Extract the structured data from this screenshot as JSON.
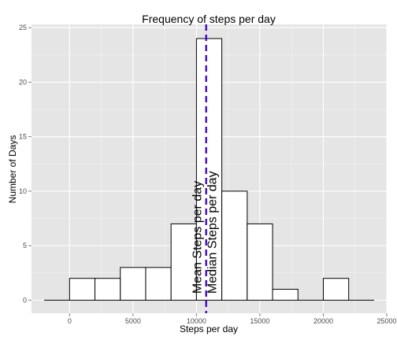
{
  "chart_data": {
    "type": "bar",
    "title": "Frequency of steps per day",
    "xlabel": "Steps per day",
    "ylabel": "Number of Days",
    "xlim": [
      -3000,
      25000
    ],
    "ylim": [
      -1.2,
      25.3
    ],
    "x_ticks": [
      0,
      5000,
      10000,
      15000,
      20000,
      25000
    ],
    "y_ticks": [
      0,
      5,
      10,
      15,
      20,
      25
    ],
    "grid": true,
    "bins": [
      {
        "x0": -2000,
        "x1": 0,
        "count": 0
      },
      {
        "x0": 0,
        "x1": 2000,
        "count": 2
      },
      {
        "x0": 2000,
        "x1": 4000,
        "count": 2
      },
      {
        "x0": 4000,
        "x1": 6000,
        "count": 3
      },
      {
        "x0": 6000,
        "x1": 8000,
        "count": 3
      },
      {
        "x0": 8000,
        "x1": 10000,
        "count": 7
      },
      {
        "x0": 10000,
        "x1": 12000,
        "count": 24
      },
      {
        "x0": 12000,
        "x1": 14000,
        "count": 10
      },
      {
        "x0": 14000,
        "x1": 16000,
        "count": 7
      },
      {
        "x0": 16000,
        "x1": 18000,
        "count": 1
      },
      {
        "x0": 18000,
        "x1": 20000,
        "count": 0
      },
      {
        "x0": 20000,
        "x1": 22000,
        "count": 2
      },
      {
        "x0": 22000,
        "x1": 24000,
        "count": 0
      }
    ],
    "reference_lines": [
      {
        "label": "Mean Steps per day",
        "x": 10766,
        "color": "#ff0000",
        "style": "dashed"
      },
      {
        "label": "Median Steps per day",
        "x": 10765,
        "color": "#0000ff",
        "style": "dashed"
      }
    ]
  }
}
